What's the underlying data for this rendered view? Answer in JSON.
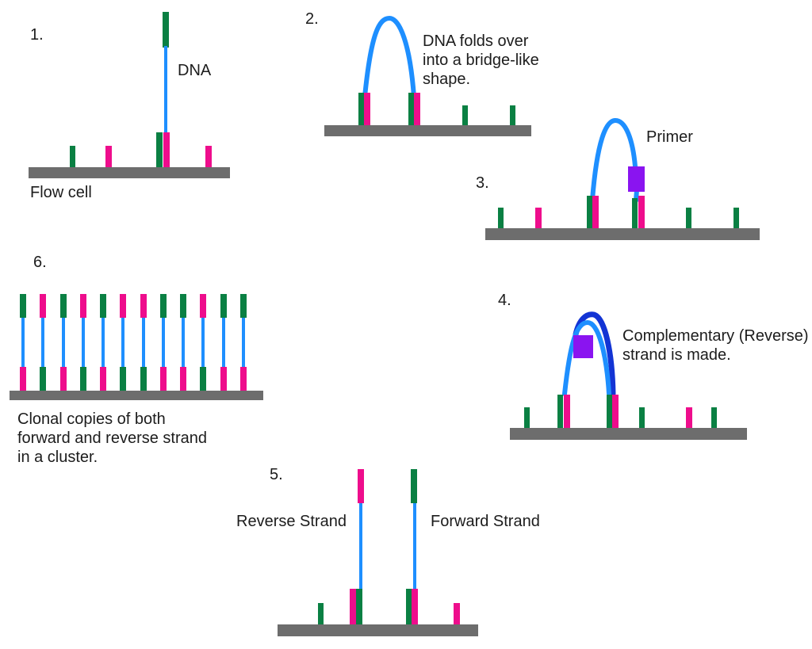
{
  "palette": {
    "green": "#0a8043",
    "pink": "#ee0d8c",
    "blue": "#1e8fff",
    "dark_blue": "#1334d4",
    "purple": "#8a14f0",
    "gray": "#6d6d6d",
    "text": "#1c1c1c"
  },
  "steps": {
    "step1": {
      "number": "1.",
      "dna_label": "DNA",
      "flow_cell_label": "Flow cell"
    },
    "step2": {
      "number": "2.",
      "caption_lines": [
        "DNA folds over",
        "into a bridge-like",
        "shape."
      ]
    },
    "step3": {
      "number": "3.",
      "primer_label": "Primer"
    },
    "step4": {
      "number": "4.",
      "caption_lines": [
        "Complementary (Reverse)",
        "strand is made."
      ]
    },
    "step5": {
      "number": "5.",
      "reverse_label": "Reverse Strand",
      "forward_label": "Forward Strand"
    },
    "step6": {
      "number": "6.",
      "caption_lines": [
        "Clonal copies of both",
        "forward and reverse strand",
        "in a cluster."
      ],
      "strand_tops": [
        "green",
        "pink",
        "green",
        "pink",
        "green",
        "pink",
        "pink",
        "green",
        "green",
        "pink",
        "green",
        "green"
      ],
      "strand_bottoms": [
        "pink",
        "green",
        "pink",
        "green",
        "pink",
        "green",
        "green",
        "pink",
        "pink",
        "green",
        "pink",
        "pink"
      ]
    }
  }
}
